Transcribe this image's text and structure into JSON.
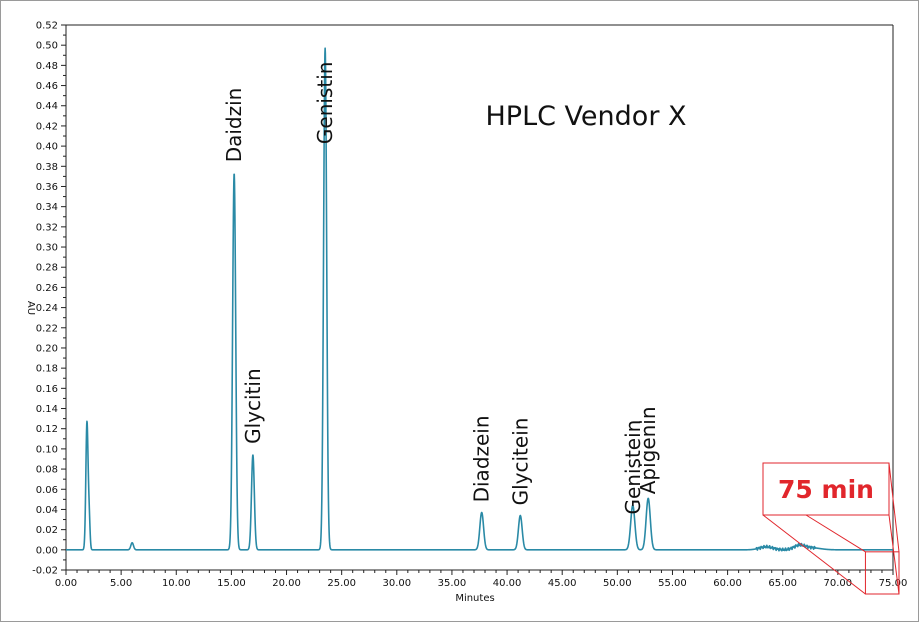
{
  "chart_data": {
    "type": "line",
    "title": "HPLC Vendor X",
    "xlabel": "Minutes",
    "ylabel": "AU",
    "xlim": [
      0,
      75
    ],
    "ylim": [
      -0.02,
      0.52
    ],
    "grid": false,
    "xticks": [
      "0.00",
      "5.00",
      "10.00",
      "15.00",
      "20.00",
      "25.00",
      "30.00",
      "35.00",
      "40.00",
      "45.00",
      "50.00",
      "55.00",
      "60.00",
      "65.00",
      "70.00",
      "75.00"
    ],
    "yticks": [
      "-0.02",
      "0.00",
      "0.02",
      "0.04",
      "0.06",
      "0.08",
      "0.10",
      "0.12",
      "0.14",
      "0.16",
      "0.18",
      "0.20",
      "0.22",
      "0.24",
      "0.26",
      "0.28",
      "0.30",
      "0.32",
      "0.34",
      "0.36",
      "0.38",
      "0.40",
      "0.42",
      "0.44",
      "0.46",
      "0.48",
      "0.50",
      "0.52"
    ],
    "series": [
      {
        "color": "#2a8aa6",
        "baseline": 0.0,
        "end_time": 75,
        "peaks": [
          {
            "t": 1.9,
            "height": 0.126,
            "width": 0.1
          },
          {
            "t": 2.1,
            "height": 0.03,
            "width": 0.08
          },
          {
            "t": 6.0,
            "height": 0.007,
            "width": 0.12
          },
          {
            "t": 15.25,
            "height": 0.373,
            "width": 0.14
          },
          {
            "t": 16.95,
            "height": 0.094,
            "width": 0.13
          },
          {
            "t": 23.5,
            "height": 0.497,
            "width": 0.14
          },
          {
            "t": 37.7,
            "height": 0.037,
            "width": 0.17
          },
          {
            "t": 41.2,
            "height": 0.034,
            "width": 0.17
          },
          {
            "t": 51.4,
            "height": 0.044,
            "width": 0.19
          },
          {
            "t": 52.8,
            "height": 0.051,
            "width": 0.19
          },
          {
            "t": 63.5,
            "height": 0.003,
            "width": 0.6
          },
          {
            "t": 66.5,
            "height": 0.004,
            "width": 0.5
          },
          {
            "t": 67.6,
            "height": 0.002,
            "width": 0.8
          }
        ]
      }
    ],
    "annotations": [
      {
        "text": "Daidzin",
        "t": 15.25,
        "value": 0.382
      },
      {
        "text": "Glycitin",
        "t": 16.95,
        "value": 0.103
      },
      {
        "text": "Genistin",
        "t": 23.5,
        "value": 0.4
      },
      {
        "text": "Diadzein",
        "t": 37.7,
        "value": 0.045
      },
      {
        "text": "Glycitein",
        "t": 41.2,
        "value": 0.042
      },
      {
        "text": "Genistein",
        "t": 51.4,
        "value": 0.033
      },
      {
        "text": "Apigenin",
        "t": 52.8,
        "value": 0.053
      }
    ],
    "callout": {
      "text": "75 min",
      "color": "#e1262c",
      "target_t": [
        72.5,
        75
      ],
      "target_value": [
        -0.02,
        -0.002
      ]
    }
  }
}
